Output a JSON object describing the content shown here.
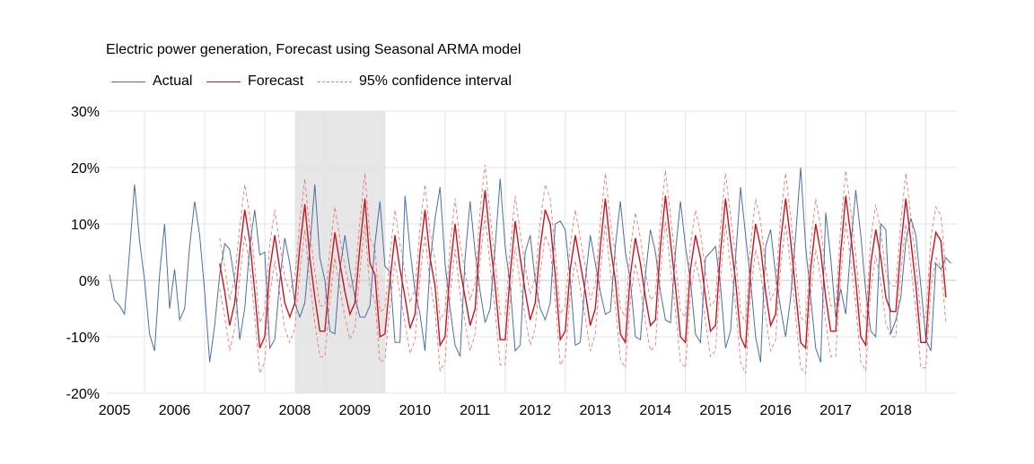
{
  "chart_data": {
    "type": "line",
    "title": "Electric power generation, Forecast using Seasonal ARMA model",
    "xlabel": "",
    "ylabel": "",
    "ylim": [
      -0.2,
      0.3
    ],
    "yticks": [
      "30%",
      "20%",
      "10%",
      "0%",
      "-10%",
      "-20%"
    ],
    "ytick_values": [
      0.3,
      0.2,
      0.1,
      0.0,
      -0.1,
      -0.2
    ],
    "year_labels": [
      "2005",
      "2006",
      "2007",
      "2008",
      "2009",
      "2010",
      "2011",
      "2012",
      "2013",
      "2014",
      "2015",
      "2016",
      "2017",
      "2018"
    ],
    "x_start": "2004-11",
    "grid": "horizontal and vertical, light gray",
    "legend_position": "top-left",
    "highlight_band": {
      "from": "2007-12",
      "to": "2009-06",
      "color": "#e6e6e6"
    },
    "colors": {
      "actual": "#4a6fa5",
      "forecast": "#c8141e",
      "ci": "#e87878",
      "grid": "#e3e3e3",
      "band": "#e6e6e6"
    },
    "series": [
      {
        "name": "Actual",
        "values": [
          0.01,
          -0.035,
          -0.045,
          -0.06,
          0.05,
          0.17,
          0.07,
          0.0,
          -0.095,
          -0.125,
          0.01,
          0.1,
          -0.05,
          0.02,
          -0.07,
          -0.05,
          0.06,
          0.14,
          0.08,
          -0.02,
          -0.145,
          -0.08,
          0.01,
          0.065,
          0.055,
          0.0,
          -0.105,
          -0.05,
          0.06,
          0.125,
          0.045,
          0.05,
          -0.12,
          -0.105,
          0.0,
          0.075,
          0.03,
          -0.04,
          -0.065,
          -0.04,
          0.06,
          0.17,
          0.04,
          0.0,
          -0.09,
          -0.095,
          0.02,
          0.08,
          0.02,
          -0.03,
          -0.065,
          -0.065,
          -0.045,
          0.065,
          0.14,
          0.025,
          0.015,
          -0.11,
          -0.11,
          0.15,
          0.055,
          -0.02,
          -0.06,
          -0.125,
          0.03,
          0.11,
          0.165,
          0.03,
          -0.05,
          -0.115,
          -0.135,
          0.04,
          0.14,
          0.05,
          -0.02,
          -0.075,
          -0.05,
          0.06,
          0.18,
          0.06,
          -0.01,
          -0.125,
          -0.115,
          0.05,
          0.08,
          0.0,
          -0.05,
          -0.07,
          -0.04,
          0.1,
          0.105,
          0.09,
          0.0,
          -0.115,
          -0.11,
          0.0,
          0.08,
          0.03,
          -0.02,
          -0.06,
          -0.055,
          0.06,
          0.14,
          0.05,
          0.0,
          -0.1,
          -0.105,
          0.01,
          0.09,
          0.05,
          -0.02,
          -0.07,
          -0.075,
          0.05,
          0.14,
          0.06,
          0.0,
          -0.095,
          -0.11,
          0.04,
          0.05,
          0.06,
          -0.01,
          -0.12,
          -0.09,
          0.04,
          0.165,
          0.08,
          0.0,
          -0.1,
          -0.145,
          0.06,
          0.09,
          0.01,
          -0.05,
          -0.1,
          -0.03,
          0.08,
          0.2,
          0.06,
          -0.03,
          -0.12,
          -0.145,
          0.12,
          0.04,
          -0.065,
          -0.015,
          -0.06,
          0.06,
          0.16,
          0.08,
          -0.02,
          -0.09,
          -0.1,
          0.1,
          0.09,
          -0.095,
          -0.07,
          -0.03,
          0.07,
          0.11,
          0.08,
          -0.01,
          -0.105,
          -0.125,
          0.03,
          0.02,
          0.04,
          0.03
        ]
      },
      {
        "name": "Forecast",
        "start": "2006-09",
        "values": [
          0.03,
          -0.02,
          -0.08,
          -0.04,
          0.05,
          0.125,
          0.07,
          -0.02,
          -0.12,
          -0.1,
          0.02,
          0.08,
          0.02,
          -0.04,
          -0.065,
          -0.04,
          0.06,
          0.135,
          0.04,
          -0.03,
          -0.09,
          -0.09,
          0.01,
          0.085,
          0.03,
          -0.02,
          -0.06,
          -0.04,
          0.06,
          0.145,
          0.03,
          0.01,
          -0.1,
          -0.095,
          0.0,
          0.08,
          0.02,
          -0.03,
          -0.085,
          -0.06,
          0.05,
          0.125,
          0.04,
          -0.01,
          -0.115,
          -0.1,
          0.02,
          0.1,
          0.02,
          -0.03,
          -0.08,
          -0.05,
          0.08,
          0.16,
          0.07,
          -0.01,
          -0.105,
          -0.105,
          0.01,
          0.105,
          0.04,
          -0.02,
          -0.07,
          -0.04,
          0.06,
          0.125,
          0.1,
          0.01,
          -0.105,
          -0.09,
          0.02,
          0.08,
          0.03,
          -0.02,
          -0.08,
          -0.05,
          0.06,
          0.145,
          0.06,
          0.0,
          -0.095,
          -0.11,
          0.01,
          0.075,
          0.03,
          -0.03,
          -0.08,
          -0.07,
          0.06,
          0.15,
          0.07,
          -0.01,
          -0.1,
          -0.11,
          0.02,
          0.08,
          0.04,
          -0.03,
          -0.09,
          -0.08,
          0.05,
          0.145,
          0.07,
          0.0,
          -0.1,
          -0.12,
          0.02,
          0.1,
          0.06,
          -0.02,
          -0.08,
          -0.06,
          0.07,
          0.145,
          0.07,
          -0.02,
          -0.11,
          -0.12,
          0.02,
          0.1,
          0.05,
          -0.03,
          -0.09,
          -0.09,
          0.05,
          0.15,
          0.08,
          0.0,
          -0.1,
          -0.115,
          0.03,
          0.09,
          0.04,
          -0.03,
          -0.055,
          -0.055,
          0.06,
          0.145,
          0.07,
          -0.01,
          -0.11,
          -0.11,
          0.03,
          0.085,
          0.07,
          -0.03
        ]
      },
      {
        "name": "95% confidence interval",
        "start": "2006-09",
        "upper": [
          0.075,
          0.025,
          -0.035,
          0.005,
          0.095,
          0.17,
          0.115,
          0.025,
          -0.075,
          -0.055,
          0.065,
          0.125,
          0.065,
          0.005,
          -0.02,
          0.005,
          0.105,
          0.18,
          0.085,
          0.015,
          -0.045,
          -0.045,
          0.055,
          0.13,
          0.075,
          0.025,
          -0.015,
          0.005,
          0.105,
          0.19,
          0.075,
          0.055,
          -0.055,
          -0.05,
          0.045,
          0.125,
          0.065,
          0.015,
          -0.04,
          -0.015,
          0.095,
          0.17,
          0.085,
          0.035,
          -0.07,
          -0.055,
          0.065,
          0.145,
          0.065,
          0.015,
          -0.035,
          -0.005,
          0.125,
          0.205,
          0.115,
          0.035,
          -0.06,
          -0.06,
          0.055,
          0.15,
          0.085,
          0.025,
          -0.025,
          0.005,
          0.105,
          0.17,
          0.145,
          0.055,
          -0.06,
          -0.045,
          0.065,
          0.125,
          0.075,
          0.025,
          -0.035,
          -0.005,
          0.105,
          0.19,
          0.105,
          0.045,
          -0.05,
          -0.065,
          0.055,
          0.12,
          0.075,
          0.015,
          -0.035,
          -0.025,
          0.105,
          0.195,
          0.115,
          0.035,
          -0.055,
          -0.065,
          0.065,
          0.125,
          0.085,
          0.015,
          -0.045,
          -0.035,
          0.095,
          0.19,
          0.115,
          0.045,
          -0.055,
          -0.075,
          0.065,
          0.145,
          0.105,
          0.025,
          -0.035,
          -0.015,
          0.115,
          0.19,
          0.115,
          0.025,
          -0.065,
          -0.075,
          0.065,
          0.145,
          0.095,
          0.015,
          -0.045,
          -0.045,
          0.095,
          0.195,
          0.125,
          0.045,
          -0.055,
          -0.07,
          0.075,
          0.135,
          0.085,
          0.015,
          -0.01,
          -0.01,
          0.105,
          0.19,
          0.115,
          0.035,
          -0.065,
          -0.065,
          0.075,
          0.13,
          0.115,
          0.015
        ],
        "lower": [
          -0.015,
          -0.065,
          -0.125,
          -0.085,
          0.005,
          0.08,
          0.025,
          -0.065,
          -0.165,
          -0.145,
          -0.025,
          0.035,
          -0.025,
          -0.085,
          -0.11,
          -0.085,
          0.015,
          0.09,
          -0.005,
          -0.075,
          -0.135,
          -0.135,
          -0.035,
          0.04,
          -0.015,
          -0.065,
          -0.105,
          -0.085,
          0.015,
          0.1,
          -0.015,
          -0.035,
          -0.145,
          -0.14,
          -0.045,
          0.035,
          -0.025,
          -0.075,
          -0.13,
          -0.105,
          0.005,
          0.08,
          -0.005,
          -0.055,
          -0.16,
          -0.145,
          -0.025,
          0.055,
          -0.025,
          -0.075,
          -0.125,
          -0.095,
          0.035,
          0.115,
          0.025,
          -0.055,
          -0.15,
          -0.15,
          -0.035,
          0.06,
          -0.005,
          -0.065,
          -0.115,
          -0.085,
          0.015,
          0.08,
          0.055,
          -0.035,
          -0.15,
          -0.135,
          -0.025,
          0.035,
          -0.015,
          -0.065,
          -0.125,
          -0.095,
          0.015,
          0.1,
          0.015,
          -0.045,
          -0.14,
          -0.155,
          -0.035,
          0.03,
          -0.015,
          -0.075,
          -0.125,
          -0.115,
          0.015,
          0.105,
          0.025,
          -0.055,
          -0.145,
          -0.155,
          -0.025,
          0.035,
          -0.005,
          -0.075,
          -0.135,
          -0.125,
          0.005,
          0.1,
          0.025,
          -0.045,
          -0.145,
          -0.165,
          -0.025,
          0.055,
          0.015,
          -0.065,
          -0.125,
          -0.105,
          0.025,
          0.1,
          0.025,
          -0.065,
          -0.155,
          -0.165,
          -0.025,
          0.055,
          0.005,
          -0.075,
          -0.135,
          -0.135,
          0.005,
          0.105,
          0.035,
          -0.045,
          -0.145,
          -0.16,
          -0.015,
          0.045,
          -0.005,
          -0.075,
          -0.1,
          -0.1,
          0.015,
          0.1,
          0.025,
          -0.055,
          -0.155,
          -0.155,
          -0.015,
          0.04,
          0.025,
          -0.075
        ]
      }
    ]
  },
  "legend": {
    "actual": "Actual",
    "forecast": "Forecast",
    "ci": "95% confidence interval"
  }
}
